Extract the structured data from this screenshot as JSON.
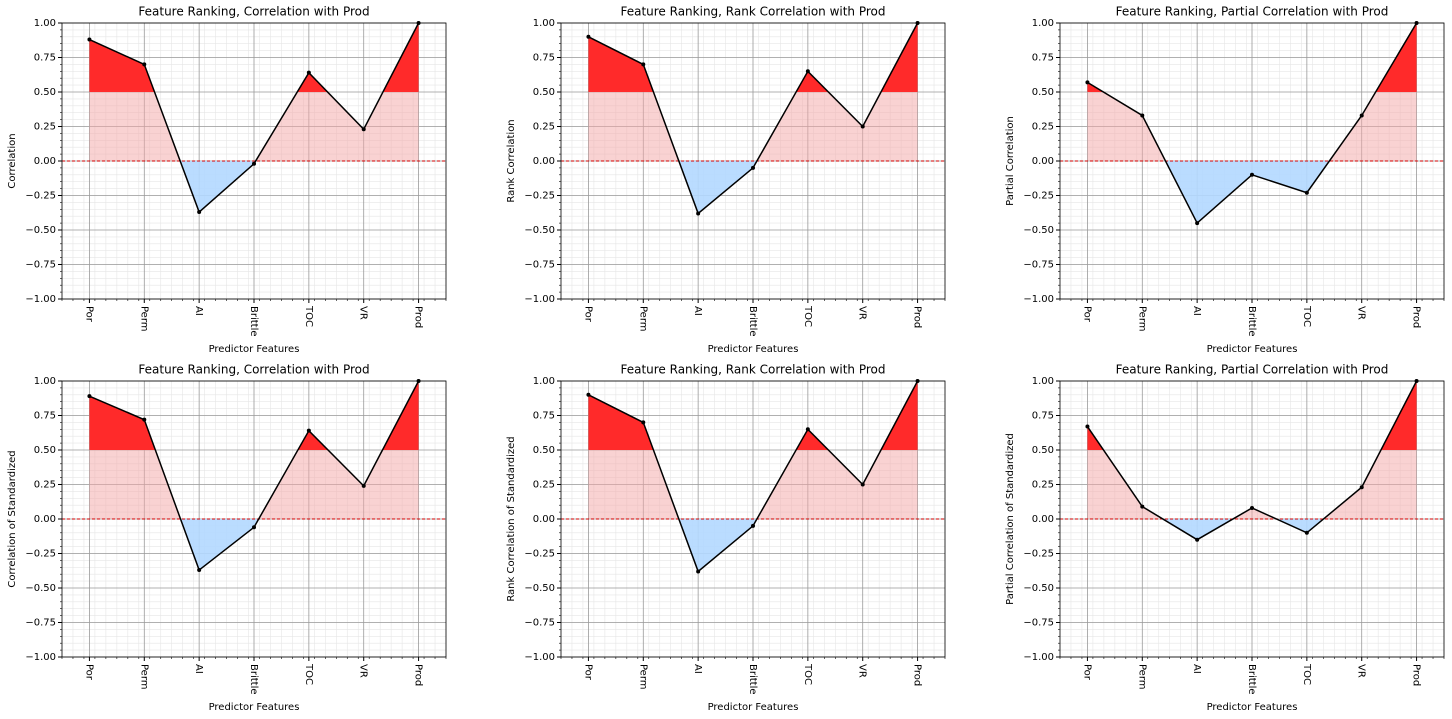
{
  "chart_data": [
    {
      "type": "line",
      "title": "Feature Ranking, Correlation with Prod",
      "ylabel": "Correlation",
      "xlabel": "Predictor Features",
      "categories": [
        "Por",
        "Perm",
        "AI",
        "Brittle",
        "TOC",
        "VR",
        "Prod"
      ],
      "values": [
        0.88,
        0.7,
        -0.37,
        -0.02,
        0.64,
        0.23,
        1.0
      ],
      "ylim": [
        -1,
        1
      ],
      "yticks": [
        {
          "value": -1,
          "label": "−1.00"
        },
        {
          "value": -0.75,
          "label": "−0.75"
        },
        {
          "value": -0.5,
          "label": "−0.50"
        },
        {
          "value": -0.25,
          "label": "−0.25"
        },
        {
          "value": 0,
          "label": "0.00"
        },
        {
          "value": 0.25,
          "label": "0.25"
        },
        {
          "value": 0.5,
          "label": "0.50"
        },
        {
          "value": 0.75,
          "label": "0.75"
        },
        {
          "value": 1,
          "label": "1.00"
        }
      ],
      "grid": true,
      "highlight_above": 0.5,
      "color": "#000000",
      "positive_color": "#f4a6a6",
      "negative_color": "#b3d8ff",
      "highlight_color": "#ff2a2a"
    },
    {
      "type": "line",
      "title": "Feature Ranking, Rank Correlation with Prod",
      "ylabel": "Rank Correlation",
      "xlabel": "Predictor Features",
      "categories": [
        "Por",
        "Perm",
        "AI",
        "Brittle",
        "TOC",
        "VR",
        "Prod"
      ],
      "values": [
        0.9,
        0.7,
        -0.38,
        -0.05,
        0.65,
        0.25,
        1.0
      ],
      "ylim": [
        -1,
        1
      ],
      "yticks": [
        {
          "value": -1,
          "label": "−1.00"
        },
        {
          "value": -0.75,
          "label": "−0.75"
        },
        {
          "value": -0.5,
          "label": "−0.50"
        },
        {
          "value": -0.25,
          "label": "−0.25"
        },
        {
          "value": 0,
          "label": "0.00"
        },
        {
          "value": 0.25,
          "label": "0.25"
        },
        {
          "value": 0.5,
          "label": "0.50"
        },
        {
          "value": 0.75,
          "label": "0.75"
        },
        {
          "value": 1,
          "label": "1.00"
        }
      ],
      "grid": true,
      "highlight_above": 0.5,
      "color": "#000000",
      "positive_color": "#f4a6a6",
      "negative_color": "#b3d8ff",
      "highlight_color": "#ff2a2a"
    },
    {
      "type": "line",
      "title": "Feature Ranking, Partial Correlation with Prod",
      "ylabel": "Partial Correlation",
      "xlabel": "Predictor Features",
      "categories": [
        "Por",
        "Perm",
        "AI",
        "Brittle",
        "TOC",
        "VR",
        "Prod"
      ],
      "values": [
        0.57,
        0.33,
        -0.45,
        -0.1,
        -0.23,
        0.33,
        1.0
      ],
      "ylim": [
        -1,
        1
      ],
      "yticks": [
        {
          "value": -1,
          "label": "−1.00"
        },
        {
          "value": -0.75,
          "label": "−0.75"
        },
        {
          "value": -0.5,
          "label": "−0.50"
        },
        {
          "value": -0.25,
          "label": "−0.25"
        },
        {
          "value": 0,
          "label": "0.00"
        },
        {
          "value": 0.25,
          "label": "0.25"
        },
        {
          "value": 0.5,
          "label": "0.50"
        },
        {
          "value": 0.75,
          "label": "0.75"
        },
        {
          "value": 1,
          "label": "1.00"
        }
      ],
      "grid": true,
      "highlight_above": 0.5,
      "color": "#000000",
      "positive_color": "#f4a6a6",
      "negative_color": "#b3d8ff",
      "highlight_color": "#ff2a2a"
    },
    {
      "type": "line",
      "title": "Feature Ranking, Correlation with Prod",
      "ylabel": "Correlation of Standardized",
      "xlabel": "Predictor Features",
      "categories": [
        "Por",
        "Perm",
        "AI",
        "Brittle",
        "TOC",
        "VR",
        "Prod"
      ],
      "values": [
        0.89,
        0.72,
        -0.37,
        -0.06,
        0.64,
        0.24,
        1.0
      ],
      "ylim": [
        -1,
        1
      ],
      "yticks": [
        {
          "value": -1,
          "label": "−1.00"
        },
        {
          "value": -0.75,
          "label": "−0.75"
        },
        {
          "value": -0.5,
          "label": "−0.50"
        },
        {
          "value": -0.25,
          "label": "−0.25"
        },
        {
          "value": 0,
          "label": "0.00"
        },
        {
          "value": 0.25,
          "label": "0.25"
        },
        {
          "value": 0.5,
          "label": "0.50"
        },
        {
          "value": 0.75,
          "label": "0.75"
        },
        {
          "value": 1,
          "label": "1.00"
        }
      ],
      "grid": true,
      "highlight_above": 0.5,
      "color": "#000000",
      "positive_color": "#f4a6a6",
      "negative_color": "#b3d8ff",
      "highlight_color": "#ff2a2a"
    },
    {
      "type": "line",
      "title": "Feature Ranking, Rank Correlation with Prod",
      "ylabel": "Rank Correlation of Standardized",
      "xlabel": "Predictor Features",
      "categories": [
        "Por",
        "Perm",
        "AI",
        "Brittle",
        "TOC",
        "VR",
        "Prod"
      ],
      "values": [
        0.9,
        0.7,
        -0.38,
        -0.05,
        0.65,
        0.25,
        1.0
      ],
      "ylim": [
        -1,
        1
      ],
      "yticks": [
        {
          "value": -1,
          "label": "−1.00"
        },
        {
          "value": -0.75,
          "label": "−0.75"
        },
        {
          "value": -0.5,
          "label": "−0.50"
        },
        {
          "value": -0.25,
          "label": "−0.25"
        },
        {
          "value": 0,
          "label": "0.00"
        },
        {
          "value": 0.25,
          "label": "0.25"
        },
        {
          "value": 0.5,
          "label": "0.50"
        },
        {
          "value": 0.75,
          "label": "0.75"
        },
        {
          "value": 1,
          "label": "1.00"
        }
      ],
      "grid": true,
      "highlight_above": 0.5,
      "color": "#000000",
      "positive_color": "#f4a6a6",
      "negative_color": "#b3d8ff",
      "highlight_color": "#ff2a2a"
    },
    {
      "type": "line",
      "title": "Feature Ranking, Partial Correlation with Prod",
      "ylabel": "Partial Correlation of Standardized",
      "xlabel": "Predictor Features",
      "categories": [
        "Por",
        "Perm",
        "AI",
        "Brittle",
        "TOC",
        "VR",
        "Prod"
      ],
      "values": [
        0.67,
        0.09,
        -0.15,
        0.08,
        -0.1,
        0.23,
        1.0
      ],
      "ylim": [
        -1,
        1
      ],
      "yticks": [
        {
          "value": -1,
          "label": "−1.00"
        },
        {
          "value": -0.75,
          "label": "−0.75"
        },
        {
          "value": -0.5,
          "label": "−0.50"
        },
        {
          "value": -0.25,
          "label": "−0.25"
        },
        {
          "value": 0,
          "label": "0.00"
        },
        {
          "value": 0.25,
          "label": "0.25"
        },
        {
          "value": 0.5,
          "label": "0.50"
        },
        {
          "value": 0.75,
          "label": "0.75"
        },
        {
          "value": 1,
          "label": "1.00"
        }
      ],
      "grid": true,
      "highlight_above": 0.5,
      "color": "#000000",
      "positive_color": "#f4a6a6",
      "negative_color": "#b3d8ff",
      "highlight_color": "#ff2a2a"
    }
  ]
}
